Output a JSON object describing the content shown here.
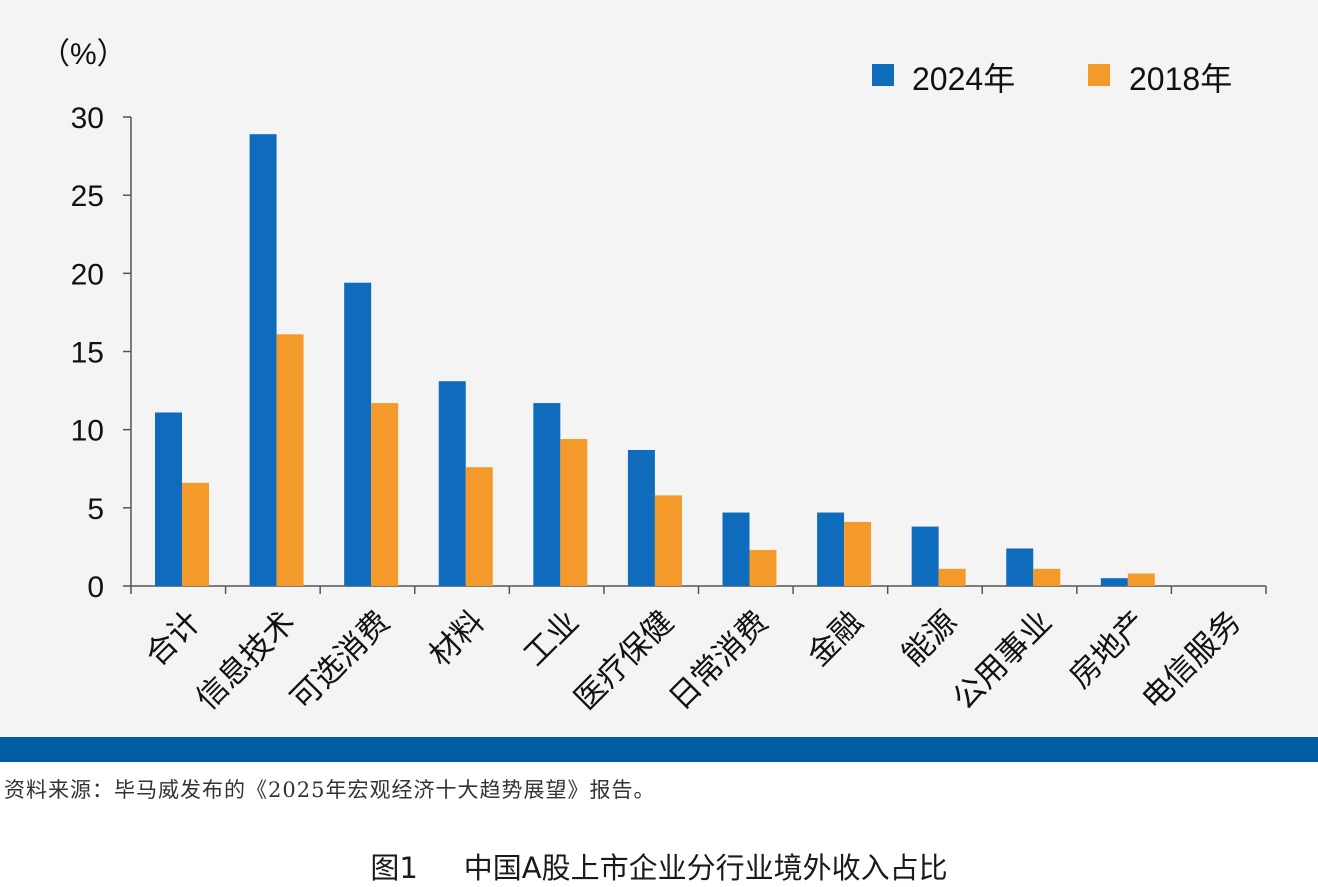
{
  "chart_data": {
    "type": "bar",
    "unit_label": "（%）",
    "categories": [
      "合计",
      "信息技术",
      "可选消费",
      "材料",
      "工业",
      "医疗保健",
      "日常消费",
      "金融",
      "能源",
      "公用事业",
      "房地产",
      "电信服务"
    ],
    "series": [
      {
        "name": "2024年",
        "color": "#0f6cbd",
        "values": [
          11.1,
          28.9,
          19.4,
          13.1,
          11.7,
          8.7,
          4.7,
          4.7,
          3.8,
          2.4,
          0.5,
          0
        ]
      },
      {
        "name": "2018年",
        "color": "#f39a2b",
        "values": [
          6.6,
          16.1,
          11.7,
          7.6,
          9.4,
          5.8,
          2.3,
          4.1,
          1.1,
          1.1,
          0.8,
          0
        ]
      }
    ],
    "ylim": [
      0,
      30
    ],
    "yticks": [
      0,
      5,
      10,
      15,
      20,
      25,
      30
    ],
    "legend_position": "top-right",
    "grid": false
  },
  "source_note": "资料来源：毕马威发布的《2025年宏观经济十大趋势展望》报告。",
  "figure_caption": {
    "number": "图1",
    "title": "中国A股上市企业分行业境外收入占比"
  }
}
